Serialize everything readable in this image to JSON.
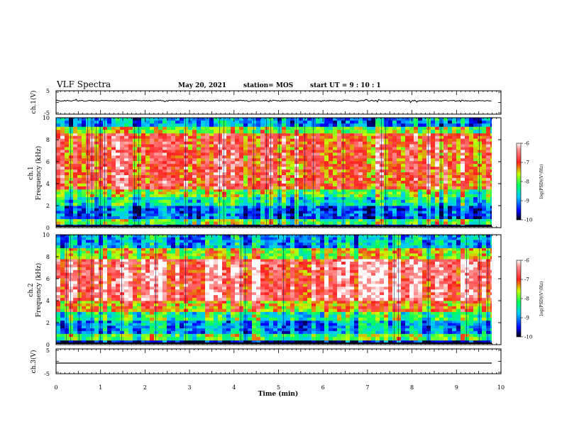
{
  "header": {
    "title": "VLF Spectra",
    "date": "May 20, 2021",
    "station": "station= MOS",
    "start": "start UT =  9 : 10 : 1"
  },
  "chart_data": [
    {
      "type": "line",
      "name": "ch1-waveform",
      "ylabel": "ch.1(V)",
      "ylim": [
        -5,
        5
      ],
      "yticks": [
        "5",
        "-5"
      ],
      "xlim": [
        0,
        10
      ]
    },
    {
      "type": "heatmap",
      "name": "ch1-spectrogram",
      "ylabel_top": "ch.1",
      "ylabel": "Frequency (kHz)",
      "ylim": [
        0,
        10
      ],
      "yticks": [
        "0",
        "2",
        "4",
        "6",
        "8",
        "10"
      ],
      "xlim": [
        0,
        10
      ],
      "colorbar": {
        "label": "log(PSD)(V²/Hz)",
        "range": [
          -10,
          -6
        ],
        "ticks": [
          "-6",
          "-7",
          "-8",
          "-9",
          "-10"
        ]
      },
      "bands_khz": [
        {
          "from": 0.0,
          "to": 0.3,
          "level": -9.8
        },
        {
          "from": 0.3,
          "to": 0.8,
          "level": -8.0
        },
        {
          "from": 0.8,
          "to": 2.0,
          "level": -9.2
        },
        {
          "from": 2.0,
          "to": 2.8,
          "level": -8.5
        },
        {
          "from": 2.8,
          "to": 3.5,
          "level": -7.9
        },
        {
          "from": 3.5,
          "to": 8.6,
          "level": -6.9
        },
        {
          "from": 8.6,
          "to": 9.2,
          "level": -7.8
        },
        {
          "from": 9.2,
          "to": 10.0,
          "level": -9.0
        }
      ]
    },
    {
      "type": "heatmap",
      "name": "ch2-spectrogram",
      "ylabel_top": "ch.2",
      "ylabel": "Frequency (kHz)",
      "ylim": [
        0,
        10
      ],
      "yticks": [
        "0",
        "2",
        "4",
        "6",
        "8",
        "10"
      ],
      "xlim": [
        0,
        10
      ],
      "colorbar": {
        "label": "log(PSD)(V²/Hz)",
        "range": [
          -10,
          -6
        ],
        "ticks": [
          "-6",
          "-7",
          "-8",
          "-9",
          "-10"
        ]
      },
      "bands_khz": [
        {
          "from": 0.0,
          "to": 0.4,
          "level": -9.7
        },
        {
          "from": 0.4,
          "to": 1.0,
          "level": -8.0
        },
        {
          "from": 1.0,
          "to": 2.2,
          "level": -8.9
        },
        {
          "from": 2.2,
          "to": 3.0,
          "level": -8.2
        },
        {
          "from": 3.0,
          "to": 4.0,
          "level": -7.3
        },
        {
          "from": 4.0,
          "to": 7.8,
          "level": -6.5
        },
        {
          "from": 7.8,
          "to": 8.8,
          "level": -7.6
        },
        {
          "from": 8.8,
          "to": 10.0,
          "level": -8.8
        }
      ]
    },
    {
      "type": "line",
      "name": "ch3-waveform",
      "ylabel": "ch.3(V)",
      "ylim": [
        -5,
        5
      ],
      "yticks": [
        "5",
        "-5"
      ],
      "xlim": [
        0,
        10
      ],
      "xlabel": "Time (min)",
      "xticks": [
        "0",
        "1",
        "2",
        "3",
        "4",
        "5",
        "6",
        "7",
        "8",
        "9",
        "10"
      ]
    }
  ],
  "colors": {
    "background": "#ffffff",
    "axis": "#000000",
    "colormap": [
      "#000080",
      "#0000ff",
      "#00c8ff",
      "#00ff80",
      "#c8ff00",
      "#ff2020",
      "#ffffff"
    ]
  }
}
